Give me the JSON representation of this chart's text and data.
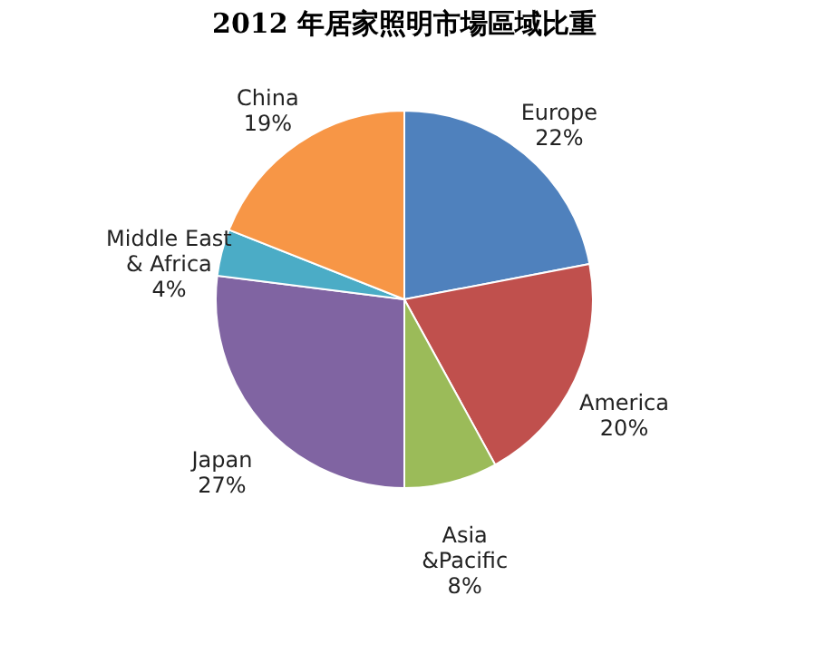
{
  "chart_data": {
    "type": "pie",
    "title": "2012 年居家照明市場區域比重",
    "categories": [
      "Europe",
      "America",
      "Asia &Pacific",
      "Japan",
      "Middle East & Africa",
      "China"
    ],
    "values": [
      22,
      20,
      8,
      27,
      4,
      19
    ],
    "colors": [
      "#4f81bd",
      "#c0504d",
      "#9bbb59",
      "#8064a2",
      "#4bacc6",
      "#f79646"
    ],
    "value_labels": [
      "22%",
      "20%",
      "8%",
      "27%",
      "4%",
      "19%"
    ]
  }
}
